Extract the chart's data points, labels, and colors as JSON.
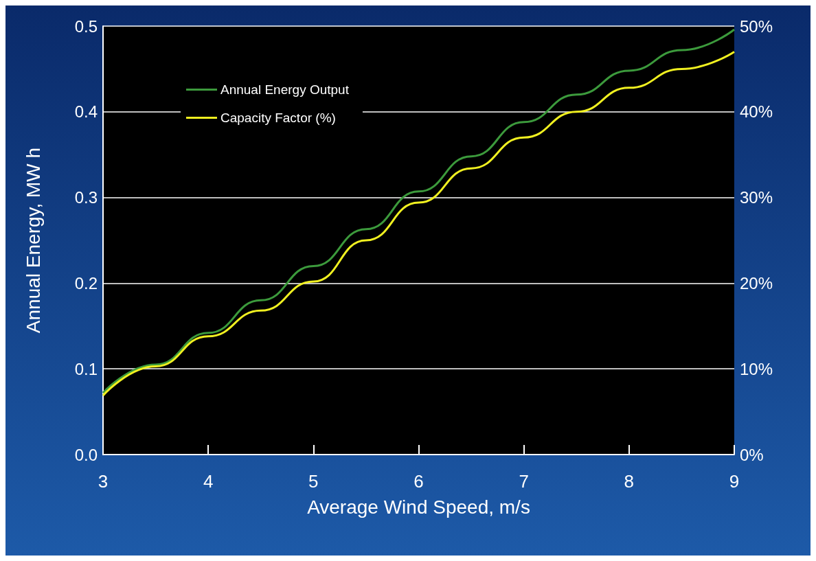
{
  "chart_data": {
    "type": "line",
    "xlabel": "Average Wind Speed, m/s",
    "ylabel": "Annual Energy, MW h",
    "xlim": [
      3,
      9
    ],
    "xticks": [
      3,
      4,
      5,
      6,
      7,
      8,
      9
    ],
    "ylim": [
      0,
      0.5
    ],
    "yticks": [
      {
        "value": 0,
        "label": "0.0"
      },
      0.1,
      0.2,
      0.3,
      0.4,
      0.5
    ],
    "y2lim": [
      0,
      50
    ],
    "y2ticks": [
      {
        "value": 0,
        "label": "0%"
      },
      {
        "value": 10,
        "label": "10%"
      },
      {
        "value": 20,
        "label": "20%"
      },
      {
        "value": 30,
        "label": "30%"
      },
      {
        "value": 40,
        "label": "40%"
      },
      {
        "value": 50,
        "label": "50%"
      }
    ],
    "series": [
      {
        "name": "Annual Energy Output",
        "color": "#3c9a3c",
        "x": [
          3,
          3.5,
          4,
          4.5,
          5,
          5.5,
          6,
          6.5,
          7,
          7.5,
          8,
          8.5,
          9
        ],
        "values": [
          0.072,
          0.105,
          0.142,
          0.18,
          0.22,
          0.263,
          0.307,
          0.348,
          0.388,
          0.42,
          0.448,
          0.472,
          0.496
        ]
      },
      {
        "name": "Capacity Factor (%)",
        "color": "#f0f020",
        "axis": "y2",
        "x": [
          3,
          3.5,
          4,
          4.5,
          5,
          5.5,
          6,
          6.5,
          7,
          7.5,
          8,
          8.5,
          9
        ],
        "values": [
          6.9,
          10.3,
          13.8,
          16.8,
          20.2,
          25.0,
          29.4,
          33.4,
          37.0,
          40.0,
          42.8,
          45.0,
          47.0
        ]
      }
    ],
    "grid": "y",
    "legend": "top left",
    "marker": "none",
    "line_style": "solid"
  }
}
